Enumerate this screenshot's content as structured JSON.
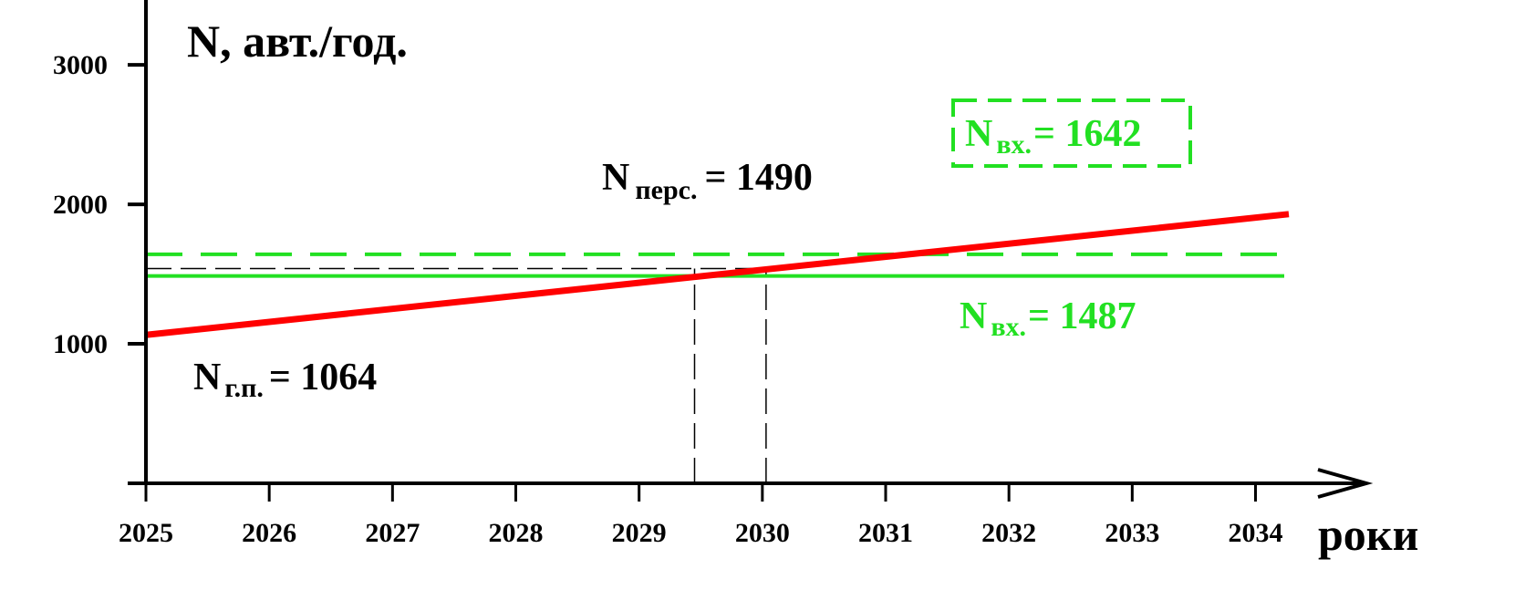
{
  "chart_data": {
    "type": "line",
    "title": "",
    "ylabel": "N, авт./год.",
    "xlabel": "роки",
    "xlim": [
      2025,
      2034.27
    ],
    "ylim": [
      0,
      3400
    ],
    "x_ticks": [
      2025,
      2026,
      2027,
      2028,
      2029,
      2030,
      2031,
      2032,
      2033,
      2034
    ],
    "y_ticks": [
      1000,
      2000,
      3000
    ],
    "grid": false,
    "colors": {
      "trend": "#ff0000",
      "capacity": "#22e022",
      "guide": "#000000"
    },
    "series": [
      {
        "line": "red",
        "x": [
          2025,
          2034.27
        ],
        "y": [
          1064,
          1930
        ]
      }
    ],
    "reference_lines": [
      {
        "line": "green-dashed",
        "y": 1642
      },
      {
        "line": "green-solid",
        "y": 1487
      },
      {
        "line": "black-dashed",
        "y": 1540
      }
    ],
    "vertical_guides": [
      2029.45,
      2030.03
    ],
    "annotations": [
      {
        "main": "N",
        "sub": "г.п.",
        "rest": "= 1064"
      },
      {
        "main": "N",
        "sub": "перс.",
        "rest": "= 1490"
      },
      {
        "main": "N",
        "sub": "вх.",
        "rest": "= 1642",
        "boxed": true
      },
      {
        "main": "N",
        "sub": "вх.",
        "rest": "= 1487"
      }
    ]
  }
}
